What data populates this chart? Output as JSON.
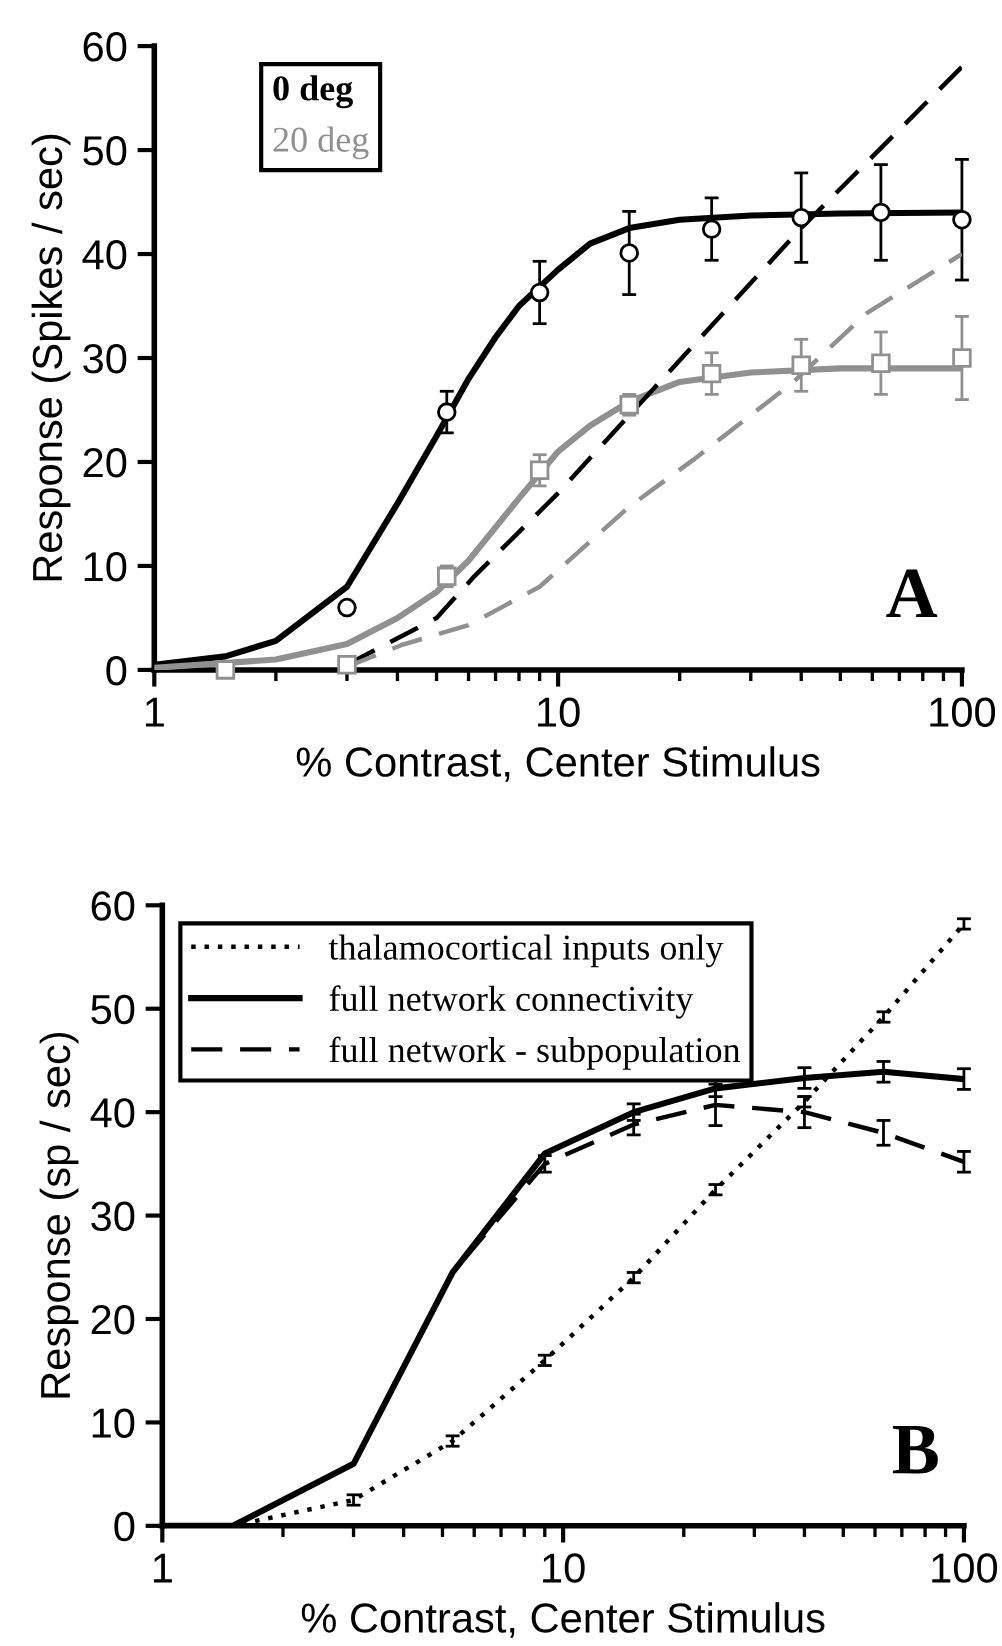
{
  "chart_data": [
    {
      "type": "line",
      "xlabel": "% Contrast, Center Stimulus",
      "ylabel": "Response (Spikes / sec)",
      "log": "x",
      "xlim": [
        1,
        100
      ],
      "xticks": [
        1,
        10,
        100
      ],
      "ylim": [
        0,
        60
      ],
      "yticks": [
        0,
        10,
        20,
        30,
        40,
        50,
        60
      ],
      "grid": false,
      "legend": "top left",
      "annotations": [
        "A"
      ],
      "series": [
        {
          "name": "0 deg",
          "type": "scatter",
          "marker": "circle",
          "color": "#000000",
          "x": [
            3,
            5.3,
            9,
            15,
            24,
            40,
            63,
            100
          ],
          "values": [
            6,
            24.8,
            36.3,
            40.1,
            42.4,
            43.5,
            44,
            43.3
          ],
          "errors": [
            null,
            2,
            3,
            4,
            3,
            4.3,
            4.6,
            5.8
          ]
        },
        {
          "name": "20 deg",
          "type": "scatter",
          "marker": "square",
          "color": "#909090",
          "x": [
            1.5,
            3,
            5.3,
            9,
            15,
            24,
            40,
            63,
            100
          ],
          "values": [
            0,
            0.5,
            9,
            19.2,
            25.5,
            28.5,
            29.3,
            29.5,
            30
          ],
          "errors": [
            null,
            null,
            1,
            1.5,
            1,
            2,
            2.5,
            3,
            4
          ]
        },
        {
          "type": "line",
          "line_style": "solid",
          "color": "#000000",
          "x": [
            1,
            1.5,
            2,
            3,
            4,
            5,
            6,
            7,
            8,
            10,
            12,
            15,
            20,
            30,
            50,
            100
          ],
          "values": [
            0.5,
            1.3,
            2.8,
            8,
            16,
            22.5,
            28,
            32,
            35,
            38.5,
            41,
            42.5,
            43.3,
            43.7,
            43.9,
            44
          ]
        },
        {
          "type": "line",
          "line_style": "solid",
          "color": "#909090",
          "x": [
            1,
            2,
            3,
            4,
            5,
            6,
            8,
            10,
            12,
            15,
            20,
            30,
            50,
            100
          ],
          "values": [
            0.2,
            1,
            2.5,
            5,
            7.5,
            10.5,
            16.5,
            21,
            23.5,
            25.8,
            27.7,
            28.6,
            29,
            29
          ]
        },
        {
          "type": "line",
          "line_style": "dashed",
          "color": "#000000",
          "x": [
            3,
            5,
            6.2,
            10,
            15,
            40,
            100
          ],
          "values": [
            0.5,
            5,
            9,
            17,
            24.5,
            42.5,
            58
          ]
        },
        {
          "type": "line",
          "line_style": "dashed",
          "color": "#909090",
          "x": [
            3,
            4.1,
            6,
            9,
            15,
            21.6,
            38,
            58,
            100
          ],
          "values": [
            0.3,
            2.4,
            4.3,
            8,
            15.7,
            20.2,
            27.6,
            34.3,
            40
          ]
        }
      ]
    },
    {
      "type": "line",
      "xlabel": "% Contrast, Center Stimulus",
      "ylabel": "Response (sp / sec)",
      "log": "x",
      "xlim": [
        1,
        100
      ],
      "xticks": [
        1,
        10,
        100
      ],
      "ylim": [
        0,
        60
      ],
      "yticks": [
        0,
        10,
        20,
        30,
        40,
        50,
        60
      ],
      "grid": false,
      "legend": "top left",
      "annotations": [
        "B"
      ],
      "series": [
        {
          "name": "thalamocortical inputs only",
          "line_style": "dotted",
          "color": "#000000",
          "x": [
            1,
            1.5,
            3,
            5.3,
            9,
            15,
            24,
            40,
            63,
            100
          ],
          "values": [
            0,
            0,
            2.5,
            8.2,
            16,
            24,
            32.5,
            41,
            49.2,
            58.2
          ],
          "errors": [
            null,
            null,
            0.5,
            0.5,
            0.5,
            0.5,
            0.5,
            0.5,
            0.5,
            0.5
          ]
        },
        {
          "name": "full network connectivity",
          "line_style": "solid",
          "color": "#000000",
          "x": [
            1,
            1.5,
            3,
            5.3,
            9,
            15,
            24,
            40,
            63,
            100
          ],
          "values": [
            0,
            0,
            6,
            24.5,
            36,
            40,
            42.3,
            43.3,
            43.9,
            43.2
          ],
          "errors": [
            null,
            null,
            null,
            null,
            null,
            0.8,
            0.8,
            1,
            1,
            1
          ]
        },
        {
          "name": "full network - subpopulation",
          "line_style": "dashed",
          "color": "#000000",
          "x": [
            1,
            1.5,
            3,
            5.3,
            9,
            15,
            24,
            40,
            63,
            100
          ],
          "values": [
            0,
            0,
            6,
            24.5,
            35,
            38.8,
            40.7,
            40,
            38,
            35.2
          ],
          "errors": [
            null,
            null,
            null,
            null,
            0.8,
            1,
            2,
            1.5,
            1.2,
            1
          ]
        }
      ]
    }
  ]
}
